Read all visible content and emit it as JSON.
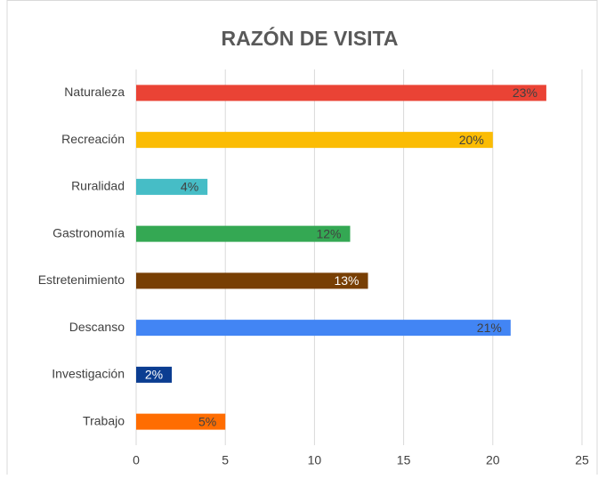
{
  "chart_data": {
    "type": "bar",
    "orientation": "horizontal",
    "title": "RAZÓN DE VISITA",
    "categories": [
      "Naturaleza",
      "Recreación",
      "Ruralidad",
      "Gastronomía",
      "Estretenimiento",
      "Descanso",
      "Investigación",
      "Trabajo"
    ],
    "values": [
      23,
      20,
      4,
      12,
      13,
      21,
      2,
      5
    ],
    "value_labels": [
      "23%",
      "20%",
      "4%",
      "12%",
      "13%",
      "21%",
      "2%",
      "5%"
    ],
    "colors": [
      "#ea4335",
      "#fbbc04",
      "#46bdc6",
      "#34a853",
      "#783f04",
      "#4285f4",
      "#0b3d91",
      "#ff6d01"
    ],
    "xlim": [
      0,
      25
    ],
    "xticks": [
      0,
      5,
      10,
      15,
      20,
      25
    ],
    "grid": true
  }
}
